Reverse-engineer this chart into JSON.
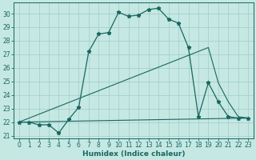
{
  "xlabel": "Humidex (Indice chaleur)",
  "bg_color": "#c5e8e3",
  "grid_color": "#a0ccc8",
  "line_color": "#1a6660",
  "xlim": [
    -0.5,
    23.5
  ],
  "ylim": [
    20.8,
    30.8
  ],
  "yticks": [
    21,
    22,
    23,
    24,
    25,
    26,
    27,
    28,
    29,
    30
  ],
  "xticks": [
    0,
    1,
    2,
    3,
    4,
    5,
    6,
    7,
    8,
    9,
    10,
    11,
    12,
    13,
    14,
    15,
    16,
    17,
    18,
    19,
    20,
    21,
    22,
    23
  ],
  "curve1_x": [
    0,
    1,
    2,
    3,
    4,
    5,
    6,
    7,
    8,
    9,
    10,
    11,
    12,
    13,
    14,
    15,
    16,
    17,
    18,
    19,
    20,
    21,
    22,
    23
  ],
  "curve1_y": [
    22,
    22,
    21.8,
    21.8,
    21.2,
    22.2,
    23.1,
    27.2,
    28.5,
    28.6,
    30.1,
    29.8,
    29.9,
    30.3,
    30.4,
    29.6,
    29.3,
    27.5,
    22.4,
    24.9,
    23.5,
    22.4,
    22.3,
    22.3
  ],
  "curve2_x": [
    0,
    19,
    20,
    21,
    22,
    23
  ],
  "curve2_y": [
    22,
    27.5,
    24.9,
    23.5,
    22.4,
    22.3
  ],
  "curve3_x": [
    0,
    23
  ],
  "curve3_y": [
    22,
    22.3
  ]
}
